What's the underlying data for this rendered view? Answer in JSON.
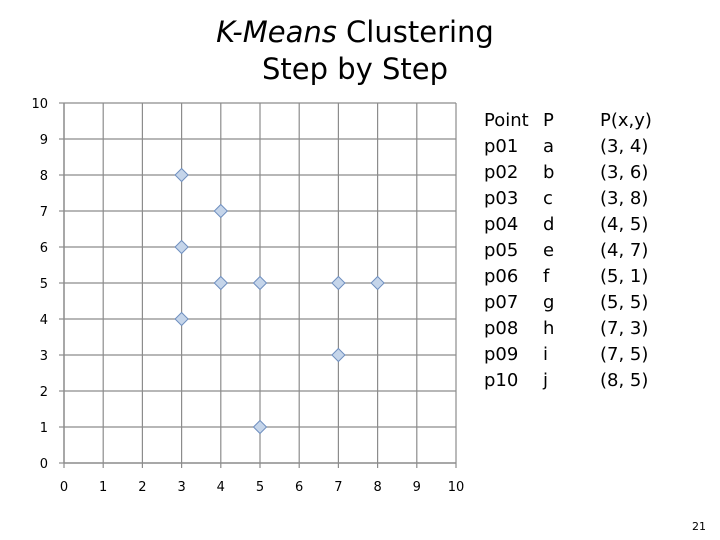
{
  "slide": {
    "title_italic": "K-Means",
    "title_rest": " Clustering",
    "title_line2": "Step by Step",
    "page_number": "21"
  },
  "table": {
    "headers": [
      "Point",
      "P",
      "P(x,y)"
    ],
    "rows": [
      [
        "p01",
        "a",
        "(3, 4)"
      ],
      [
        "p02",
        "b",
        "(3, 6)"
      ],
      [
        "p03",
        "c",
        "(3, 8)"
      ],
      [
        "p04",
        "d",
        "(4, 5)"
      ],
      [
        "p05",
        "e",
        "(4, 7)"
      ],
      [
        "p06",
        "f",
        "(5, 1)"
      ],
      [
        "p07",
        "g",
        "(5, 5)"
      ],
      [
        "p08",
        "h",
        "(7, 3)"
      ],
      [
        "p09",
        "i",
        "(7, 5)"
      ],
      [
        "p10",
        "j",
        "(8, 5)"
      ]
    ]
  },
  "chart_data": {
    "type": "scatter",
    "title": "",
    "xlabel": "",
    "ylabel": "",
    "xlim": [
      0,
      10
    ],
    "ylim": [
      0,
      10
    ],
    "xticks": [
      "0",
      "1",
      "2",
      "3",
      "4",
      "5",
      "6",
      "7",
      "8",
      "9",
      "10"
    ],
    "yticks": [
      "0",
      "1",
      "2",
      "3",
      "4",
      "5",
      "6",
      "7",
      "8",
      "9",
      "10"
    ],
    "grid": true,
    "marker": "diamond",
    "marker_fill": "#c5d5ea",
    "marker_stroke": "#6f8fbf",
    "points": [
      {
        "x": 3,
        "y": 4
      },
      {
        "x": 3,
        "y": 6
      },
      {
        "x": 3,
        "y": 8
      },
      {
        "x": 4,
        "y": 5
      },
      {
        "x": 4,
        "y": 7
      },
      {
        "x": 5,
        "y": 1
      },
      {
        "x": 5,
        "y": 5
      },
      {
        "x": 7,
        "y": 3
      },
      {
        "x": 7,
        "y": 5
      },
      {
        "x": 8,
        "y": 5
      }
    ]
  }
}
